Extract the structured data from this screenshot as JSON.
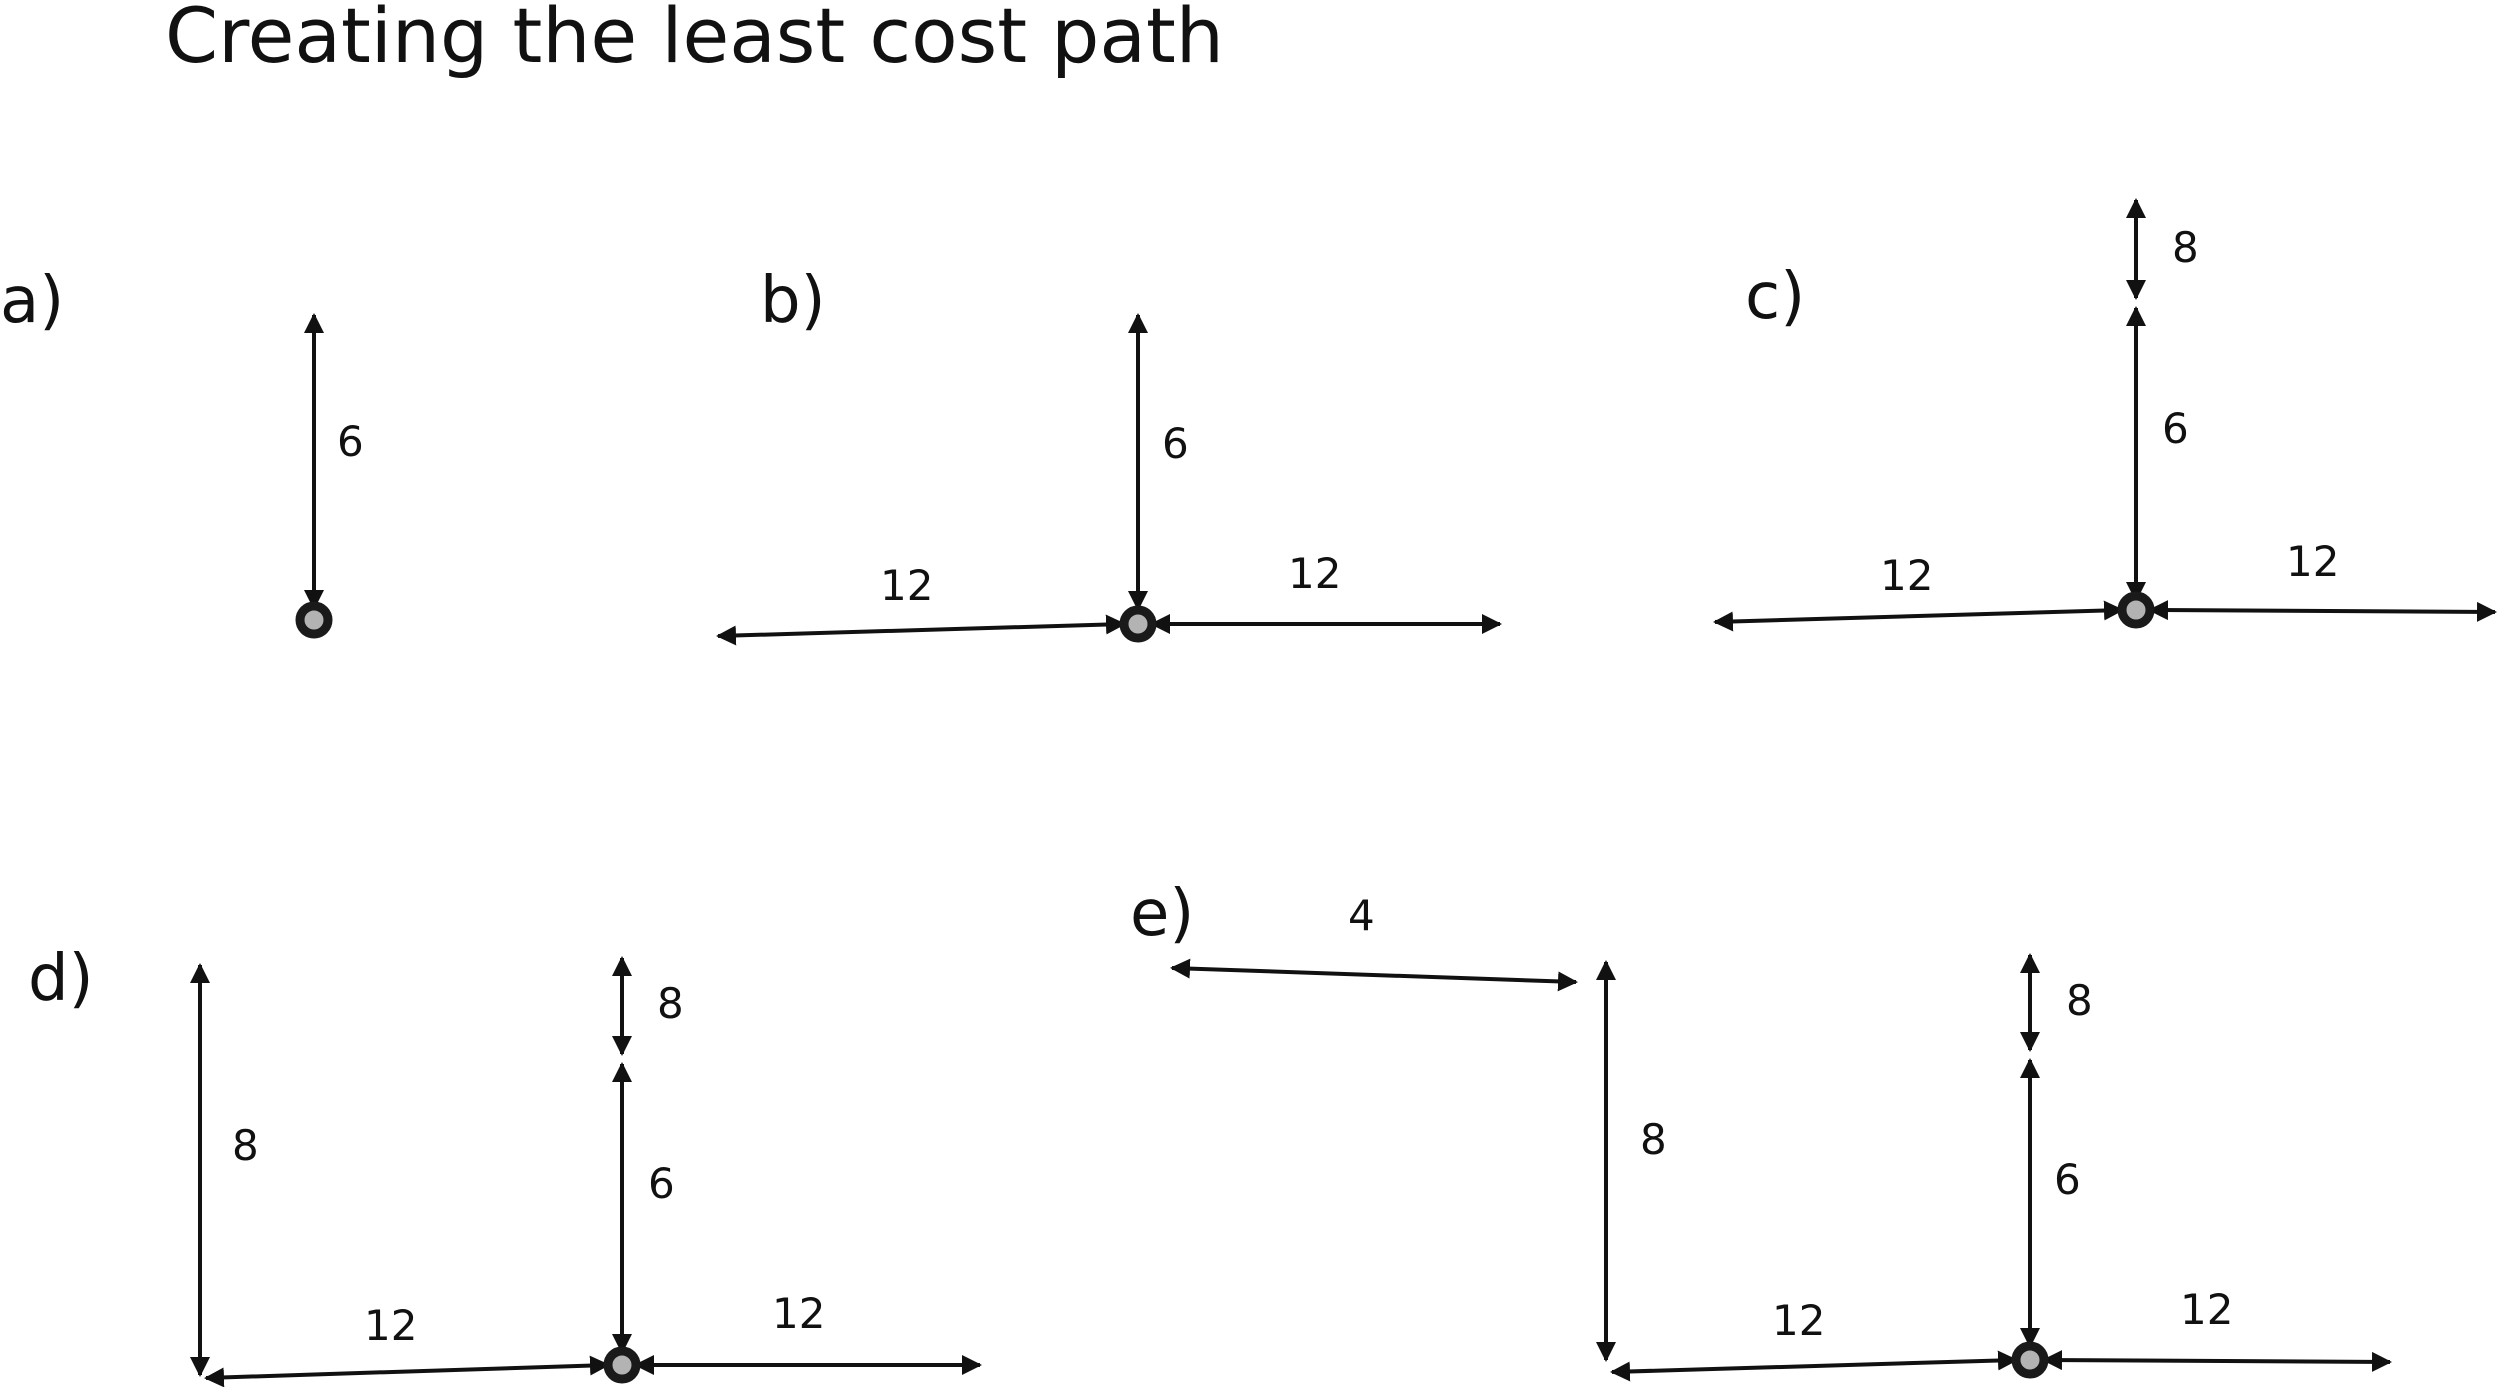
{
  "title": "Creating the least cost path",
  "colors": {
    "line": "#111111",
    "node_fill": "#b3b3b3",
    "node_stroke": "#1a1a1a"
  },
  "panels": [
    {
      "id": "a",
      "label": "a)",
      "costs": [
        "6"
      ]
    },
    {
      "id": "b",
      "label": "b)",
      "costs": [
        "6",
        "12",
        "12"
      ]
    },
    {
      "id": "c",
      "label": "c)",
      "costs": [
        "8",
        "6",
        "12",
        "12"
      ]
    },
    {
      "id": "d",
      "label": "d)",
      "costs": [
        "8",
        "8",
        "6",
        "12",
        "12"
      ]
    },
    {
      "id": "e",
      "label": "e)",
      "costs": [
        "4",
        "8",
        "8",
        "6",
        "12",
        "12"
      ]
    }
  ]
}
